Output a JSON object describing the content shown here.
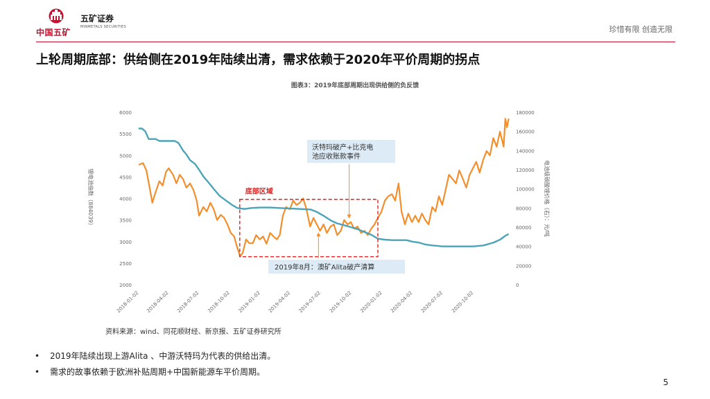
{
  "header": {
    "logo_text": "中国五矿",
    "brand_name": "五矿证券",
    "brand_name_en": "MINMETALS SECURITIES",
    "slogan": "珍惜有限 创造无限",
    "accent_color": "#c8102e"
  },
  "title": "上轮周期底部：供给侧在2019年陆续出清，需求依赖于2020年平价周期的拐点",
  "source": "资料来源：wind、同花顺财经、新京报、五矿证券研究所",
  "bullets": [
    "2019年陆续出现上游Alita 、中游沃特玛为代表的供给出清。",
    "需求的故事依赖于欧洲补贴周期+中国新能源车平价周期。"
  ],
  "bullet_symbol": "•",
  "page_number": "5",
  "chart_data": {
    "type": "line",
    "title": "图表3：2019年底部周期出现供给侧的负反馈",
    "ylabel_left": "锂电池指数（884039）",
    "ylabel_right": "电池级碳酸锂价格（右）：元/吨",
    "left_ylim": [
      2000,
      6000
    ],
    "right_ylim": [
      0,
      180000
    ],
    "left_ticks": [
      "6000",
      "5500",
      "5000",
      "4500",
      "4000",
      "3500",
      "3000",
      "2500",
      "2000"
    ],
    "right_ticks": [
      "180000",
      "160000",
      "140000",
      "120000",
      "100000",
      "80000",
      "60000",
      "40000",
      "20000",
      "0"
    ],
    "x_ticks": [
      "2018-01-02",
      "2018-04-02",
      "2018-07-02",
      "2018-10-02",
      "2019-01-02",
      "2019-04-02",
      "2019-07-02",
      "2019-10-02",
      "2020-01-02",
      "2020-04-02",
      "2020-07-02",
      "2020-10-02"
    ],
    "grid": false,
    "series": [
      {
        "name": "锂电池指数（884039）",
        "axis": "left",
        "color": "#f28e2b",
        "points": [
          [
            "2018-01-02",
            4780
          ],
          [
            "2018-01-15",
            4820
          ],
          [
            "2018-01-25",
            4650
          ],
          [
            "2018-02-05",
            4200
          ],
          [
            "2018-02-12",
            3900
          ],
          [
            "2018-02-22",
            4150
          ],
          [
            "2018-03-05",
            4400
          ],
          [
            "2018-03-15",
            4300
          ],
          [
            "2018-03-25",
            4620
          ],
          [
            "2018-04-02",
            4700
          ],
          [
            "2018-04-15",
            4550
          ],
          [
            "2018-04-25",
            4350
          ],
          [
            "2018-05-05",
            4550
          ],
          [
            "2018-05-15",
            4450
          ],
          [
            "2018-05-25",
            4250
          ],
          [
            "2018-06-05",
            4350
          ],
          [
            "2018-06-15",
            4200
          ],
          [
            "2018-06-25",
            3950
          ],
          [
            "2018-07-02",
            3600
          ],
          [
            "2018-07-15",
            3800
          ],
          [
            "2018-07-25",
            3700
          ],
          [
            "2018-08-05",
            3900
          ],
          [
            "2018-08-15",
            3750
          ],
          [
            "2018-08-25",
            3500
          ],
          [
            "2018-09-05",
            3620
          ],
          [
            "2018-09-15",
            3550
          ],
          [
            "2018-09-25",
            3400
          ],
          [
            "2018-10-05",
            3200
          ],
          [
            "2018-10-15",
            3120
          ],
          [
            "2018-10-25",
            2850
          ],
          [
            "2018-11-02",
            2660
          ],
          [
            "2018-11-10",
            2740
          ],
          [
            "2018-11-20",
            3050
          ],
          [
            "2018-11-30",
            2960
          ],
          [
            "2018-12-10",
            2960
          ],
          [
            "2018-12-20",
            3150
          ],
          [
            "2018-12-31",
            3050
          ],
          [
            "2019-01-10",
            3120
          ],
          [
            "2019-01-20",
            2950
          ],
          [
            "2019-01-31",
            3200
          ],
          [
            "2019-02-10",
            3120
          ],
          [
            "2019-02-20",
            3050
          ],
          [
            "2019-03-01",
            3150
          ],
          [
            "2019-03-10",
            3600
          ],
          [
            "2019-03-20",
            3800
          ],
          [
            "2019-03-31",
            3750
          ],
          [
            "2019-04-10",
            3950
          ],
          [
            "2019-04-20",
            3850
          ],
          [
            "2019-04-30",
            3900
          ],
          [
            "2019-05-10",
            4000
          ],
          [
            "2019-05-20",
            3750
          ],
          [
            "2019-05-31",
            3350
          ],
          [
            "2019-06-10",
            3550
          ],
          [
            "2019-06-20",
            3400
          ],
          [
            "2019-06-30",
            3250
          ],
          [
            "2019-07-10",
            3400
          ],
          [
            "2019-07-20",
            3200
          ],
          [
            "2019-07-31",
            3350
          ],
          [
            "2019-08-10",
            3400
          ],
          [
            "2019-08-20",
            3150
          ],
          [
            "2019-08-31",
            3250
          ],
          [
            "2019-09-10",
            3500
          ],
          [
            "2019-09-20",
            3400
          ],
          [
            "2019-09-30",
            3450
          ],
          [
            "2019-10-10",
            3300
          ],
          [
            "2019-10-20",
            3350
          ],
          [
            "2019-10-31",
            3200
          ],
          [
            "2019-11-10",
            3250
          ],
          [
            "2019-11-20",
            3150
          ],
          [
            "2019-11-30",
            3300
          ],
          [
            "2019-12-10",
            3400
          ],
          [
            "2019-12-20",
            3550
          ],
          [
            "2019-12-31",
            3700
          ],
          [
            "2020-01-10",
            3950
          ],
          [
            "2020-01-20",
            4050
          ],
          [
            "2020-01-31",
            4100
          ],
          [
            "2020-02-10",
            3950
          ],
          [
            "2020-02-20",
            4350
          ],
          [
            "2020-02-29",
            3700
          ],
          [
            "2020-03-10",
            3400
          ],
          [
            "2020-03-20",
            3650
          ],
          [
            "2020-03-31",
            3450
          ],
          [
            "2020-04-10",
            3600
          ],
          [
            "2020-04-20",
            3450
          ],
          [
            "2020-04-30",
            3650
          ],
          [
            "2020-05-10",
            3500
          ],
          [
            "2020-05-20",
            3400
          ],
          [
            "2020-05-31",
            3800
          ],
          [
            "2020-06-10",
            3700
          ],
          [
            "2020-06-20",
            4050
          ],
          [
            "2020-06-30",
            3850
          ],
          [
            "2020-07-10",
            4200
          ],
          [
            "2020-07-20",
            4550
          ],
          [
            "2020-07-31",
            4450
          ],
          [
            "2020-08-10",
            4350
          ],
          [
            "2020-08-20",
            4650
          ],
          [
            "2020-08-31",
            4450
          ],
          [
            "2020-09-10",
            4250
          ],
          [
            "2020-09-20",
            4550
          ],
          [
            "2020-09-30",
            4700
          ],
          [
            "2020-10-10",
            4850
          ],
          [
            "2020-10-20",
            4600
          ],
          [
            "2020-10-31",
            4900
          ],
          [
            "2020-11-10",
            5100
          ],
          [
            "2020-11-20",
            5000
          ],
          [
            "2020-11-30",
            5400
          ],
          [
            "2020-12-10",
            5200
          ],
          [
            "2020-12-20",
            5550
          ],
          [
            "2020-12-31",
            5200
          ],
          [
            "2021-01-05",
            5850
          ],
          [
            "2021-01-10",
            5650
          ],
          [
            "2021-01-15",
            5850
          ]
        ]
      },
      {
        "name": "电池级碳酸锂价格（右）：元/吨",
        "axis": "right",
        "color": "#4ba3b8",
        "points": [
          [
            "2018-01-02",
            163000
          ],
          [
            "2018-01-12",
            163000
          ],
          [
            "2018-01-22",
            160000
          ],
          [
            "2018-02-01",
            152000
          ],
          [
            "2018-02-12",
            152000
          ],
          [
            "2018-02-22",
            152000
          ],
          [
            "2018-03-05",
            150000
          ],
          [
            "2018-04-20",
            150000
          ],
          [
            "2018-05-01",
            148000
          ],
          [
            "2018-05-15",
            140000
          ],
          [
            "2018-05-25",
            136000
          ],
          [
            "2018-06-05",
            130000
          ],
          [
            "2018-06-20",
            126000
          ],
          [
            "2018-07-02",
            120000
          ],
          [
            "2018-07-15",
            113000
          ],
          [
            "2018-08-01",
            106000
          ],
          [
            "2018-08-15",
            100000
          ],
          [
            "2018-09-01",
            93000
          ],
          [
            "2018-09-20",
            88000
          ],
          [
            "2018-10-10",
            83000
          ],
          [
            "2018-10-25",
            80000
          ],
          [
            "2018-11-15",
            79000
          ],
          [
            "2018-12-05",
            80000
          ],
          [
            "2019-01-02",
            80500
          ],
          [
            "2019-02-01",
            80500
          ],
          [
            "2019-03-01",
            80000
          ],
          [
            "2019-05-01",
            79000
          ],
          [
            "2019-06-01",
            78500
          ],
          [
            "2019-06-20",
            76000
          ],
          [
            "2019-07-10",
            72000
          ],
          [
            "2019-08-01",
            67000
          ],
          [
            "2019-08-20",
            64000
          ],
          [
            "2019-09-10",
            62000
          ],
          [
            "2019-10-01",
            60000
          ],
          [
            "2019-10-20",
            58000
          ],
          [
            "2019-11-10",
            55000
          ],
          [
            "2019-12-01",
            52000
          ],
          [
            "2019-12-20",
            48000
          ],
          [
            "2020-01-10",
            47000
          ],
          [
            "2020-02-01",
            46500
          ],
          [
            "2020-03-15",
            46500
          ],
          [
            "2020-04-01",
            45000
          ],
          [
            "2020-04-20",
            44000
          ],
          [
            "2020-05-10",
            42000
          ],
          [
            "2020-06-01",
            41000
          ],
          [
            "2020-07-01",
            40000
          ],
          [
            "2020-08-01",
            40000
          ],
          [
            "2020-09-01",
            40000
          ],
          [
            "2020-10-01",
            40000
          ],
          [
            "2020-11-01",
            41000
          ],
          [
            "2020-12-01",
            44000
          ],
          [
            "2020-12-20",
            47000
          ],
          [
            "2021-01-05",
            51000
          ],
          [
            "2021-01-15",
            53000
          ]
        ]
      }
    ],
    "annotations": [
      {
        "id": "box",
        "label": "底部区域",
        "x_range": [
          "2018-11-01",
          "2019-12-20"
        ],
        "y_range": [
          2650,
          3980
        ],
        "color": "#e02020"
      },
      {
        "id": "callout-top",
        "lines": [
          "沃特玛破产+比克电",
          "池应收账款事件"
        ],
        "arrow_to": [
          "2019-09-25",
          3500
        ]
      },
      {
        "id": "callout-bottom",
        "lines": [
          "2019年8月：澳矿Alita破产清算"
        ],
        "arrow_to": [
          "2019-06-25",
          3250
        ]
      }
    ]
  }
}
